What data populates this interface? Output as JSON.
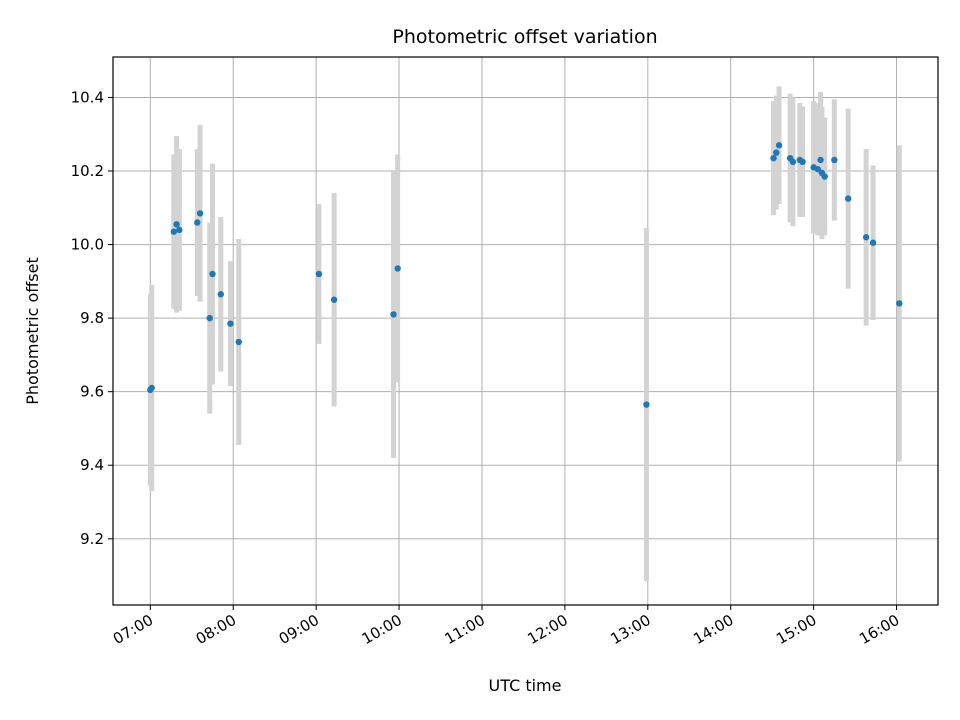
{
  "chart_data": {
    "type": "scatter",
    "title": "Photometric offset variation",
    "xlabel": "UTC time",
    "ylabel": "Photometric offset",
    "x_unit": "time of day (UTC)",
    "xlim": [
      "06:33",
      "16:30"
    ],
    "ylim": [
      9.02,
      10.51
    ],
    "x_ticks": [
      "07:00",
      "08:00",
      "09:00",
      "10:00",
      "11:00",
      "12:00",
      "13:00",
      "14:00",
      "15:00",
      "16:00"
    ],
    "y_ticks": [
      "9.2",
      "9.4",
      "9.6",
      "9.8",
      "10.0",
      "10.2",
      "10.4"
    ],
    "grid": true,
    "legend": false,
    "marker_color": "#1f77b4",
    "errorbar_color": "#d3d3d3",
    "series": [
      {
        "points": [
          {
            "time": "07:00",
            "y": 9.605,
            "err": 0.26
          },
          {
            "time": "07:01",
            "y": 9.61,
            "err": 0.28
          },
          {
            "time": "07:17",
            "y": 10.035,
            "err": 0.21
          },
          {
            "time": "07:19",
            "y": 10.055,
            "err": 0.24
          },
          {
            "time": "07:21",
            "y": 10.04,
            "err": 0.22
          },
          {
            "time": "07:34",
            "y": 10.06,
            "err": 0.2
          },
          {
            "time": "07:36",
            "y": 10.085,
            "err": 0.24
          },
          {
            "time": "07:43",
            "y": 9.8,
            "err": 0.26
          },
          {
            "time": "07:45",
            "y": 9.92,
            "err": 0.3
          },
          {
            "time": "07:51",
            "y": 9.865,
            "err": 0.21
          },
          {
            "time": "07:58",
            "y": 9.785,
            "err": 0.17
          },
          {
            "time": "08:04",
            "y": 9.735,
            "err": 0.28
          },
          {
            "time": "09:02",
            "y": 9.92,
            "err": 0.19
          },
          {
            "time": "09:13",
            "y": 9.85,
            "err": 0.29
          },
          {
            "time": "09:56",
            "y": 9.81,
            "err": 0.39
          },
          {
            "time": "09:59",
            "y": 9.935,
            "err": 0.31
          },
          {
            "time": "12:59",
            "y": 9.565,
            "err": 0.48
          },
          {
            "time": "14:31",
            "y": 10.235,
            "err": 0.155
          },
          {
            "time": "14:33",
            "y": 10.25,
            "err": 0.155
          },
          {
            "time": "14:35",
            "y": 10.27,
            "err": 0.16
          },
          {
            "time": "14:43",
            "y": 10.235,
            "err": 0.175
          },
          {
            "time": "14:45",
            "y": 10.225,
            "err": 0.175
          },
          {
            "time": "14:50",
            "y": 10.23,
            "err": 0.155
          },
          {
            "time": "14:52",
            "y": 10.225,
            "err": 0.15
          },
          {
            "time": "15:00",
            "y": 10.21,
            "err": 0.18
          },
          {
            "time": "15:03",
            "y": 10.205,
            "err": 0.18
          },
          {
            "time": "15:05",
            "y": 10.23,
            "err": 0.185
          },
          {
            "time": "15:06",
            "y": 10.195,
            "err": 0.18
          },
          {
            "time": "15:08",
            "y": 10.185,
            "err": 0.16
          },
          {
            "time": "15:15",
            "y": 10.23,
            "err": 0.165
          },
          {
            "time": "15:25",
            "y": 10.125,
            "err": 0.245
          },
          {
            "time": "15:38",
            "y": 10.02,
            "err": 0.24
          },
          {
            "time": "15:43",
            "y": 10.005,
            "err": 0.21
          },
          {
            "time": "16:02",
            "y": 9.84,
            "err": 0.43
          }
        ]
      }
    ]
  }
}
